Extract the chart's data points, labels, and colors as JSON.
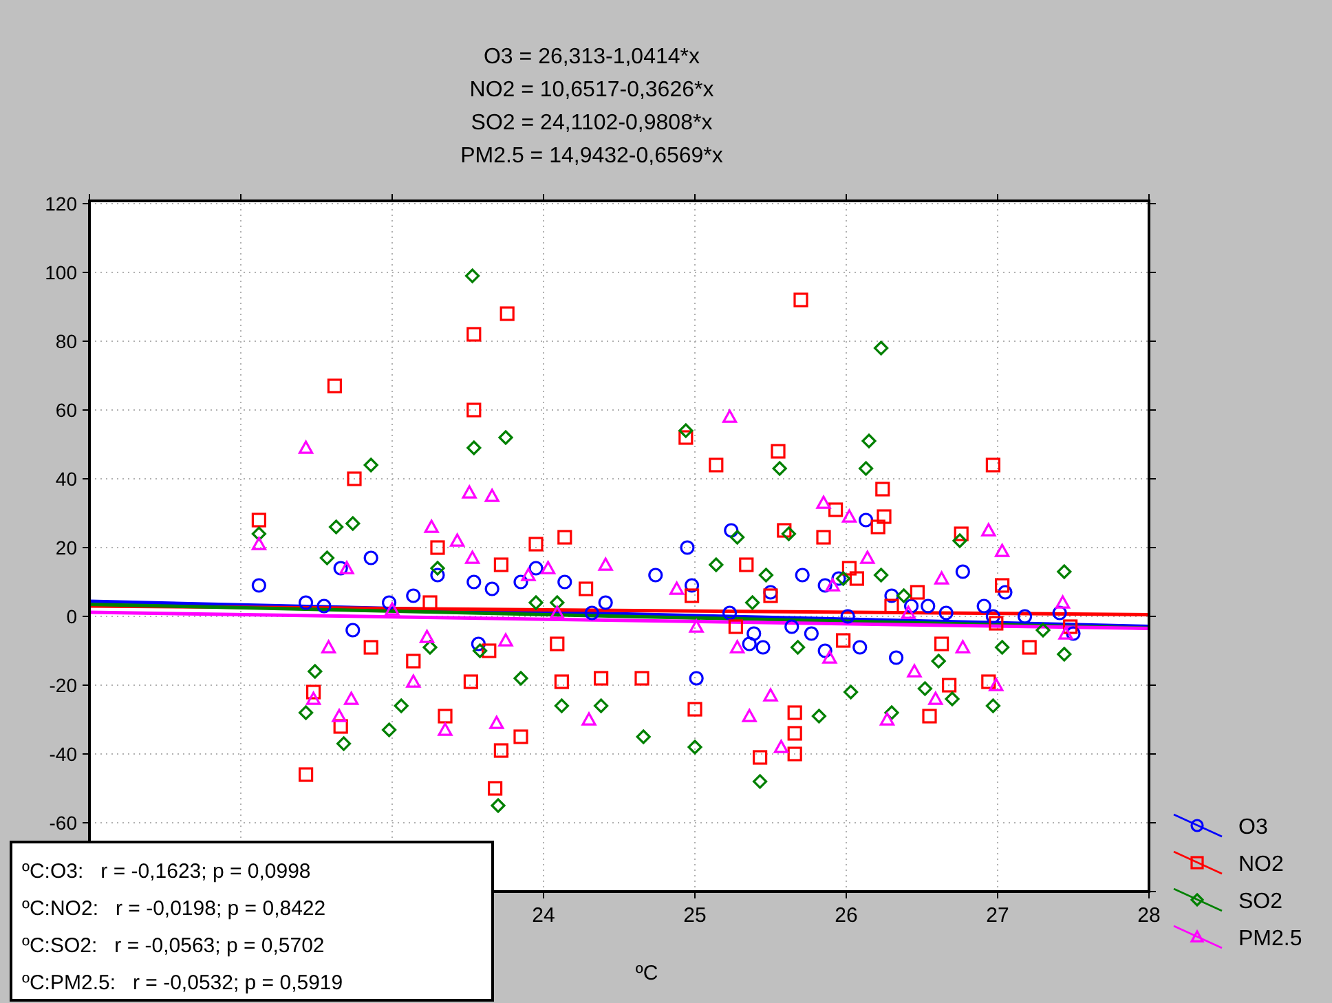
{
  "chart_data": {
    "type": "scatter",
    "title": "O3 = 26,313-1,0414*x\nNO2 = 10,6517-0,3626*x\nSO2 = 24,1102-0,9808*x\nPM2.5 = 14,9432-0,6569*x",
    "xlabel": "ºC",
    "xlim": [
      21,
      28
    ],
    "xticks": [
      {
        "value": 21,
        "label": null
      },
      {
        "value": 22,
        "label": null
      },
      {
        "value": 23,
        "label": null
      },
      24,
      25,
      26,
      27,
      28
    ],
    "ylim": [
      -80,
      120
    ],
    "yticks": [
      {
        "value": -80,
        "label": null
      },
      -60,
      -40,
      -20,
      0,
      20,
      40,
      60,
      80,
      100,
      120
    ],
    "grid": true,
    "legend": "right",
    "annotations": [
      "ºC:O3:   r = -0,1623; p = 0,0998",
      "ºC:NO2:   r = -0,0198; p = 0,8422",
      "ºC:SO2:   r = -0,0563; p = 0,5702",
      "ºC:PM2.5:   r = -0,0532; p = 0,5919"
    ],
    "series": [
      {
        "name": "O3",
        "marker": "circle",
        "color": "#0000ff",
        "x": [
          22.12,
          22.43,
          22.55,
          22.66,
          22.74,
          22.86,
          22.98,
          23.14,
          23.3,
          23.54,
          23.57,
          23.66,
          23.85,
          23.95,
          24.14,
          24.32,
          24.41,
          24.74,
          24.95,
          24.98,
          25.01,
          25.24,
          25.23,
          25.39,
          25.45,
          25.5,
          25.64,
          25.71,
          25.77,
          25.86,
          25.95,
          26.01,
          26.09,
          26.13,
          26.3,
          26.43,
          26.54,
          26.66,
          26.77,
          26.91,
          26.97,
          27.05,
          27.18,
          27.41,
          27.5,
          25.86,
          26.33,
          25.36
        ],
        "values": [
          9,
          4,
          3,
          14,
          -4,
          17,
          4,
          6,
          12,
          10,
          -8,
          8,
          10,
          14,
          10,
          1,
          4,
          12,
          20,
          9,
          -18,
          25,
          1,
          -5,
          -9,
          7,
          -3,
          12,
          -5,
          9,
          11,
          0,
          -9,
          28,
          6,
          3,
          3,
          1,
          13,
          3,
          0,
          7,
          0,
          1,
          -5,
          -10,
          -12,
          -8
        ]
      },
      {
        "name": "NO2",
        "marker": "square",
        "color": "#ff0000",
        "x": [
          22.12,
          22.43,
          22.48,
          22.62,
          22.66,
          22.75,
          22.86,
          23.14,
          23.25,
          23.3,
          23.35,
          23.52,
          23.54,
          23.54,
          23.64,
          23.72,
          23.72,
          23.68,
          23.76,
          23.85,
          23.95,
          24.09,
          24.12,
          24.14,
          24.28,
          24.38,
          24.65,
          24.94,
          24.98,
          25.0,
          25.14,
          25.27,
          25.34,
          25.43,
          25.5,
          25.55,
          25.59,
          25.66,
          25.66,
          25.66,
          25.7,
          25.85,
          25.93,
          25.98,
          26.02,
          26.07,
          26.21,
          26.24,
          26.25,
          26.3,
          26.47,
          26.55,
          26.63,
          26.68,
          26.76,
          26.94,
          26.97,
          26.99,
          27.03,
          27.48,
          27.21
        ],
        "values": [
          28,
          -46,
          -22,
          67,
          -32,
          40,
          -9,
          -13,
          4,
          20,
          -29,
          -19,
          82,
          60,
          -10,
          15,
          -39,
          -50,
          88,
          -35,
          21,
          -8,
          -19,
          23,
          8,
          -18,
          -18,
          52,
          6,
          -27,
          44,
          -3,
          15,
          -41,
          6,
          48,
          25,
          -34,
          -40,
          -28,
          92,
          23,
          31,
          -7,
          14,
          11,
          26,
          37,
          29,
          3,
          7,
          -29,
          -8,
          -20,
          24,
          -19,
          44,
          -2,
          9,
          -3,
          -9
        ]
      },
      {
        "name": "SO2",
        "marker": "diamond",
        "color": "#008000",
        "x": [
          22.12,
          22.43,
          22.49,
          22.57,
          22.63,
          22.68,
          22.74,
          22.86,
          22.98,
          23.06,
          23.25,
          23.3,
          23.53,
          23.54,
          23.58,
          23.75,
          23.7,
          23.85,
          23.95,
          24.09,
          24.12,
          24.38,
          24.66,
          24.94,
          25.0,
          25.14,
          25.28,
          25.38,
          25.43,
          25.47,
          25.56,
          25.62,
          25.68,
          25.82,
          25.98,
          26.03,
          26.13,
          26.15,
          26.23,
          26.23,
          26.3,
          26.38,
          26.52,
          26.61,
          26.7,
          26.75,
          26.97,
          27.03,
          27.3,
          27.44,
          27.44
        ],
        "values": [
          24,
          -28,
          -16,
          17,
          26,
          -37,
          27,
          44,
          -33,
          -26,
          -9,
          14,
          99,
          49,
          -10,
          52,
          -55,
          -18,
          4,
          4,
          -26,
          -26,
          -35,
          54,
          -38,
          15,
          23,
          4,
          -48,
          12,
          43,
          24,
          -9,
          -29,
          11,
          -22,
          43,
          51,
          78,
          12,
          -28,
          6,
          -21,
          -13,
          -24,
          22,
          -26,
          -9,
          -4,
          13,
          -11
        ]
      },
      {
        "name": "PM2.5",
        "marker": "triangle",
        "color": "#ff00ff",
        "x": [
          22.12,
          22.43,
          22.48,
          22.58,
          22.65,
          22.7,
          22.73,
          23.0,
          23.14,
          23.23,
          23.26,
          23.35,
          23.43,
          23.51,
          23.53,
          23.66,
          23.69,
          23.75,
          23.9,
          24.03,
          24.09,
          24.3,
          24.41,
          24.88,
          25.01,
          25.23,
          25.28,
          25.36,
          25.5,
          25.57,
          25.85,
          25.89,
          25.91,
          26.02,
          26.14,
          26.27,
          26.41,
          26.45,
          26.59,
          26.63,
          26.77,
          26.94,
          26.99,
          27.03,
          27.43,
          27.45
        ],
        "values": [
          21,
          49,
          -24,
          -9,
          -29,
          14,
          -24,
          2,
          -19,
          -6,
          26,
          -33,
          22,
          36,
          17,
          35,
          -31,
          -7,
          12,
          14,
          1,
          -30,
          15,
          8,
          -3,
          58,
          -9,
          -29,
          -23,
          -38,
          33,
          -12,
          9,
          29,
          17,
          -30,
          1,
          -16,
          -24,
          11,
          -9,
          25,
          -20,
          19,
          4,
          -5
        ]
      },
      {
        "type": "line",
        "marker": "none",
        "color": "#0000ff",
        "x": [
          21,
          28
        ],
        "values": [
          4.4,
          -2.9
        ]
      },
      {
        "type": "line",
        "marker": "none",
        "color": "#ff0000",
        "x": [
          21,
          28
        ],
        "values": [
          3,
          0.5
        ]
      },
      {
        "type": "line",
        "marker": "none",
        "color": "#008000",
        "x": [
          21,
          28
        ],
        "values": [
          3.5,
          -3.4
        ]
      },
      {
        "type": "line",
        "marker": "none",
        "color": "#ff00ff",
        "x": [
          21,
          28
        ],
        "values": [
          1.2,
          -3.5
        ]
      }
    ]
  }
}
